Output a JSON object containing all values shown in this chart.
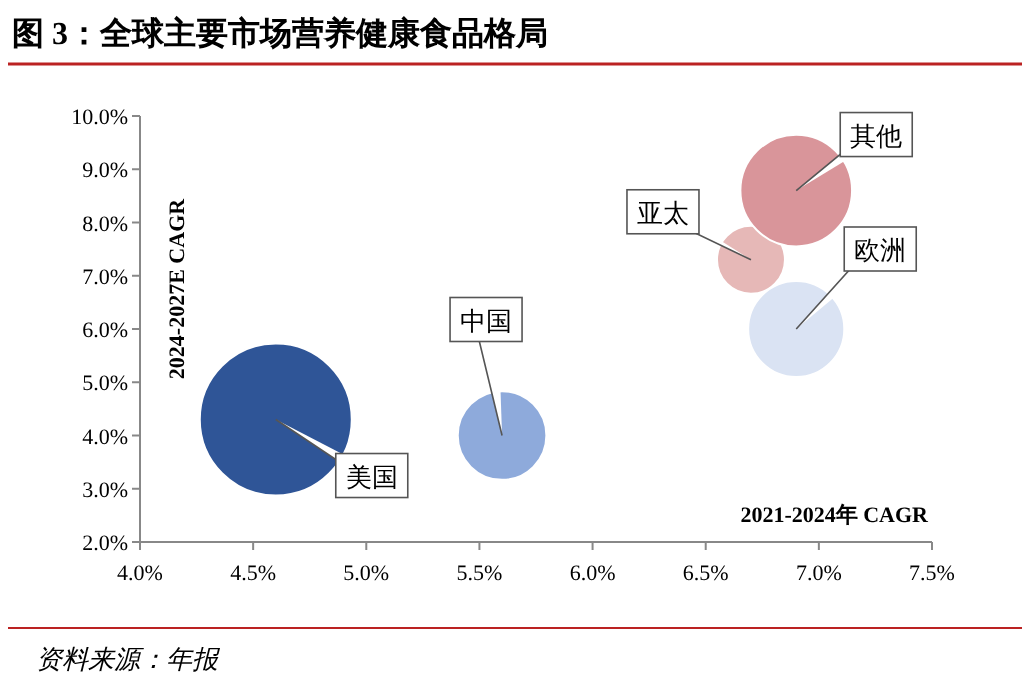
{
  "chart_data": {
    "type": "bubble",
    "title": "图 3：全球主要市场营养健康食品格局",
    "xlabel": "2021-2024年 CAGR",
    "ylabel": "2024-2027E CAGR",
    "x": [
      4.6,
      5.6,
      6.7,
      6.9,
      6.9
    ],
    "values": [
      4.3,
      4.0,
      7.3,
      8.6,
      6.0
    ],
    "sizes": [
      1,
      0.34,
      0.2,
      0.54,
      0.4
    ],
    "colors": [
      "#2f5597",
      "#8eaadb",
      "#e6b8b7",
      "#d9959a",
      "#dae3f3"
    ],
    "xlim": [
      4.0,
      7.5
    ],
    "ylim": [
      2.0,
      10.0
    ],
    "xticks": [
      {
        "value": 4.0,
        "label": "4.0%"
      },
      {
        "value": 4.5,
        "label": "4.5%"
      },
      {
        "value": 5.0,
        "label": "5.0%"
      },
      {
        "value": 5.5,
        "label": "5.5%"
      },
      {
        "value": 6.0,
        "label": "6.0%"
      },
      {
        "value": 6.5,
        "label": "6.5%"
      },
      {
        "value": 7.0,
        "label": "7.0%"
      },
      {
        "value": 7.5,
        "label": "7.5%"
      }
    ],
    "yticks": [
      {
        "value": 2.0,
        "label": "2.0%"
      },
      {
        "value": 3.0,
        "label": "3.0%"
      },
      {
        "value": 4.0,
        "label": "4.0%"
      },
      {
        "value": 5.0,
        "label": "5.0%"
      },
      {
        "value": 6.0,
        "label": "6.0%"
      },
      {
        "value": 7.0,
        "label": "7.0%"
      },
      {
        "value": 8.0,
        "label": "8.0%"
      },
      {
        "value": 9.0,
        "label": "9.0%"
      },
      {
        "value": 10.0,
        "label": "10.0%"
      }
    ],
    "grid": false,
    "annotations": [
      {
        "text": "美国",
        "x": 4.6,
        "y": 4.3
      },
      {
        "text": "中国",
        "x": 5.6,
        "y": 4.0
      },
      {
        "text": "亚太",
        "x": 6.7,
        "y": 7.3
      },
      {
        "text": "其他",
        "x": 6.9,
        "y": 8.6
      },
      {
        "text": "欧洲",
        "x": 6.9,
        "y": 6.0
      },
      "资料来源：年报"
    ]
  }
}
